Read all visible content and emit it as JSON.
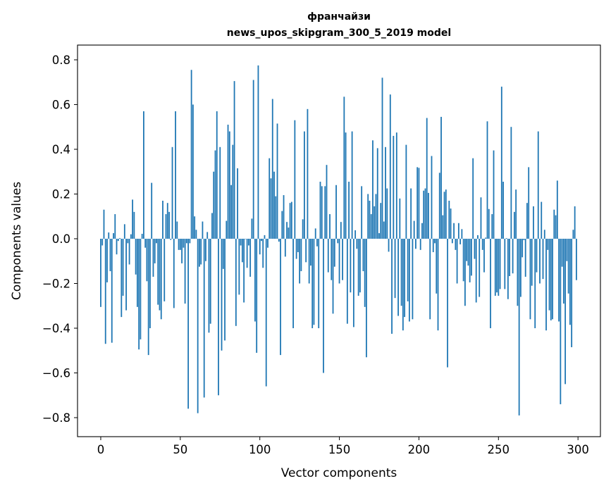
{
  "chart_data": {
    "type": "bar",
    "title_line1": "франчайзи",
    "title_line2": "news_upos_skipgram_300_5_2019 model",
    "xlabel": "Vector components",
    "ylabel": "Components values",
    "xlim": [
      -14.6,
      314.1
    ],
    "ylim": [
      -0.885,
      0.866
    ],
    "xticks": [
      0,
      50,
      100,
      150,
      200,
      250,
      300
    ],
    "yticks": [
      -0.8,
      -0.6,
      -0.4,
      -0.2,
      0.0,
      0.2,
      0.4,
      0.6,
      0.8
    ],
    "xtick_labels": [
      "0",
      "50",
      "100",
      "150",
      "200",
      "250",
      "300"
    ],
    "ytick_labels": [
      "−0.8",
      "−0.6",
      "−0.4",
      "−0.2",
      "0.0",
      "0.2",
      "0.4",
      "0.6",
      "0.8"
    ],
    "grid": false,
    "bar_color": "#1f77b4",
    "values": [
      -0.305,
      -0.03,
      0.13,
      -0.47,
      -0.195,
      0.028,
      -0.145,
      -0.465,
      0.025,
      0.11,
      -0.07,
      -0.01,
      0.003,
      -0.35,
      -0.255,
      0.065,
      -0.32,
      -0.02,
      -0.115,
      0.02,
      0.175,
      0.12,
      -0.16,
      -0.305,
      -0.495,
      -0.45,
      0.022,
      0.57,
      -0.04,
      -0.19,
      -0.52,
      -0.4,
      0.25,
      -0.17,
      -0.11,
      -0.02,
      -0.295,
      -0.32,
      -0.36,
      0.17,
      -0.28,
      0.11,
      0.16,
      0.12,
      -0.005,
      0.41,
      -0.31,
      0.57,
      0.077,
      -0.05,
      -0.05,
      -0.11,
      -0.04,
      -0.29,
      -0.02,
      -0.76,
      -0.02,
      0.755,
      0.6,
      0.1,
      0.04,
      -0.78,
      -0.125,
      -0.115,
      0.077,
      -0.71,
      -0.1,
      0.03,
      -0.42,
      -0.38,
      0.115,
      0.3,
      0.395,
      0.57,
      -0.7,
      0.41,
      -0.5,
      -0.135,
      -0.455,
      0.08,
      0.51,
      0.48,
      0.24,
      0.42,
      0.705,
      -0.39,
      0.315,
      -0.25,
      -0.03,
      -0.105,
      -0.285,
      -0.002,
      -0.13,
      -0.03,
      -0.17,
      0.09,
      0.71,
      -0.37,
      -0.51,
      0.775,
      -0.07,
      -0.01,
      -0.13,
      0.016,
      -0.66,
      -0.04,
      0.36,
      0.27,
      0.625,
      0.3,
      0.19,
      0.515,
      -0.013,
      -0.52,
      0.124,
      0.195,
      -0.08,
      0.075,
      0.05,
      0.16,
      0.165,
      -0.4,
      0.53,
      -0.09,
      -0.06,
      -0.2,
      -0.145,
      0.087,
      0.48,
      -0.105,
      0.58,
      -0.2,
      -0.12,
      -0.4,
      -0.385,
      0.046,
      -0.034,
      -0.4,
      0.255,
      0.235,
      -0.6,
      0.235,
      0.33,
      -0.15,
      0.11,
      -0.185,
      -0.335,
      -0.125,
      0.24,
      -0.02,
      -0.2,
      0.075,
      -0.185,
      0.635,
      0.475,
      -0.38,
      0.255,
      -0.24,
      0.48,
      -0.395,
      0.038,
      -0.045,
      -0.255,
      -0.24,
      0.235,
      -0.145,
      -0.305,
      -0.53,
      0.2,
      0.17,
      0.11,
      0.44,
      0.145,
      0.2,
      0.405,
      0.025,
      0.16,
      0.72,
      0.077,
      0.41,
      0.225,
      -0.058,
      0.645,
      -0.425,
      0.46,
      -0.265,
      0.475,
      -0.345,
      0.18,
      -0.3,
      -0.41,
      -0.35,
      0.42,
      -0.28,
      -0.37,
      0.225,
      -0.36,
      0.08,
      -0.045,
      0.32,
      0.317,
      -0.05,
      0.07,
      0.215,
      0.225,
      0.54,
      0.205,
      -0.36,
      0.37,
      -0.06,
      -0.02,
      -0.245,
      -0.41,
      0.295,
      0.545,
      0.105,
      0.21,
      0.22,
      -0.575,
      0.17,
      0.135,
      -0.02,
      0.07,
      -0.05,
      -0.2,
      0.07,
      -0.025,
      0.043,
      -0.19,
      -0.3,
      -0.1,
      -0.12,
      -0.195,
      -0.165,
      0.36,
      -0.09,
      -0.285,
      0.016,
      -0.26,
      0.185,
      -0.05,
      -0.15,
      0.005,
      0.525,
      0.133,
      -0.4,
      0.11,
      0.395,
      -0.255,
      -0.24,
      -0.255,
      -0.225,
      0.68,
      0.255,
      -0.225,
      0.003,
      -0.27,
      -0.167,
      0.5,
      -0.155,
      0.12,
      0.22,
      -0.3,
      -0.79,
      -0.26,
      -0.083,
      -0.006,
      -0.17,
      0.16,
      0.32,
      -0.36,
      -0.21,
      0.145,
      -0.4,
      -0.15,
      0.48,
      -0.2,
      0.165,
      -0.18,
      0.04,
      -0.41,
      -0.05,
      -0.32,
      -0.365,
      -0.36,
      0.13,
      0.105,
      0.26,
      -0.37,
      -0.74,
      -0.125,
      -0.29,
      -0.65,
      -0.1,
      -0.245,
      -0.385,
      -0.485,
      0.04,
      0.145,
      -0.185
    ]
  }
}
